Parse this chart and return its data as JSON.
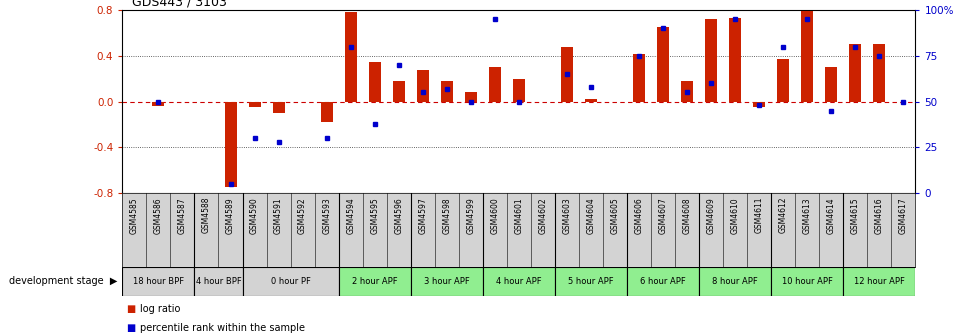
{
  "title": "GDS443 / 3103",
  "samples": [
    "GSM4585",
    "GSM4586",
    "GSM4587",
    "GSM4588",
    "GSM4589",
    "GSM4590",
    "GSM4591",
    "GSM4592",
    "GSM4593",
    "GSM4594",
    "GSM4595",
    "GSM4596",
    "GSM4597",
    "GSM4598",
    "GSM4599",
    "GSM4600",
    "GSM4601",
    "GSM4602",
    "GSM4603",
    "GSM4604",
    "GSM4605",
    "GSM4606",
    "GSM4607",
    "GSM4608",
    "GSM4609",
    "GSM4610",
    "GSM4611",
    "GSM4612",
    "GSM4613",
    "GSM4614",
    "GSM4615",
    "GSM4616",
    "GSM4617"
  ],
  "log_ratio": [
    0.0,
    -0.04,
    0.0,
    0.0,
    -0.75,
    -0.05,
    -0.1,
    0.0,
    -0.18,
    0.78,
    0.35,
    0.18,
    0.28,
    0.18,
    0.08,
    0.3,
    0.2,
    0.0,
    0.48,
    0.02,
    0.0,
    0.42,
    0.65,
    0.18,
    0.72,
    0.73,
    -0.05,
    0.37,
    0.79,
    0.3,
    0.5,
    0.5,
    0.0
  ],
  "percentile": [
    null,
    50,
    null,
    null,
    5,
    30,
    28,
    null,
    30,
    80,
    38,
    70,
    55,
    57,
    50,
    95,
    50,
    null,
    65,
    58,
    null,
    75,
    90,
    55,
    60,
    95,
    48,
    80,
    95,
    45,
    80,
    75,
    50
  ],
  "stages": [
    {
      "label": "18 hour BPF",
      "start": 0,
      "end": 3,
      "color": "#d3d3d3"
    },
    {
      "label": "4 hour BPF",
      "start": 3,
      "end": 5,
      "color": "#d3d3d3"
    },
    {
      "label": "0 hour PF",
      "start": 5,
      "end": 9,
      "color": "#d3d3d3"
    },
    {
      "label": "2 hour APF",
      "start": 9,
      "end": 12,
      "color": "#90ee90"
    },
    {
      "label": "3 hour APF",
      "start": 12,
      "end": 15,
      "color": "#90ee90"
    },
    {
      "label": "4 hour APF",
      "start": 15,
      "end": 18,
      "color": "#90ee90"
    },
    {
      "label": "5 hour APF",
      "start": 18,
      "end": 21,
      "color": "#90ee90"
    },
    {
      "label": "6 hour APF",
      "start": 21,
      "end": 24,
      "color": "#90ee90"
    },
    {
      "label": "8 hour APF",
      "start": 24,
      "end": 27,
      "color": "#90ee90"
    },
    {
      "label": "10 hour APF",
      "start": 27,
      "end": 30,
      "color": "#90ee90"
    },
    {
      "label": "12 hour APF",
      "start": 30,
      "end": 33,
      "color": "#90ee90"
    }
  ],
  "ylim": [
    -0.8,
    0.8
  ],
  "yticks_left": [
    -0.8,
    -0.4,
    0.0,
    0.4,
    0.8
  ],
  "right_yticks_pct": [
    0,
    25,
    50,
    75,
    100
  ],
  "bar_color": "#cc2200",
  "dot_color": "#0000cc",
  "zero_line_color": "#cc0000",
  "dotted_color": "#333333",
  "bg_color": "#ffffff",
  "title_color": "#000000",
  "left_tick_color": "#cc2200",
  "right_tick_color": "#0000cc",
  "label_bg_color": "#d3d3d3",
  "stage_green_color": "#90ee90",
  "legend_bar_color": "#cc2200",
  "legend_dot_color": "#0000cc"
}
